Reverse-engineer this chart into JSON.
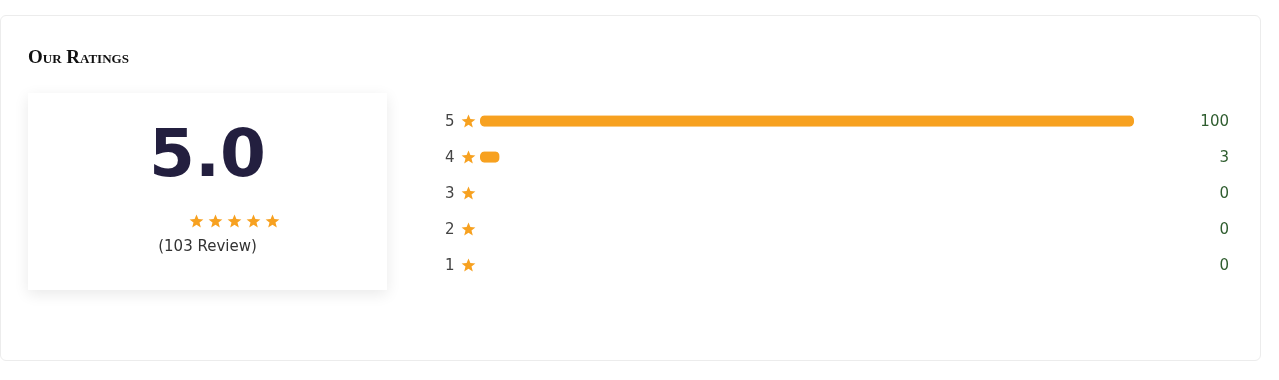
{
  "chart_data": [
    {
      "type": "other",
      "title": "Our Ratings",
      "annotations": [
        "5.0",
        "(103 Review)"
      ]
    },
    {
      "type": "bar",
      "orientation": "horizontal",
      "categories": [
        "5",
        "4",
        "3",
        "2",
        "1"
      ],
      "values": [
        100,
        3,
        0,
        0,
        0
      ],
      "color": "#f7a120",
      "xlim": [
        0,
        100
      ],
      "data_labels": true,
      "tick_labels": "y"
    }
  ]
}
